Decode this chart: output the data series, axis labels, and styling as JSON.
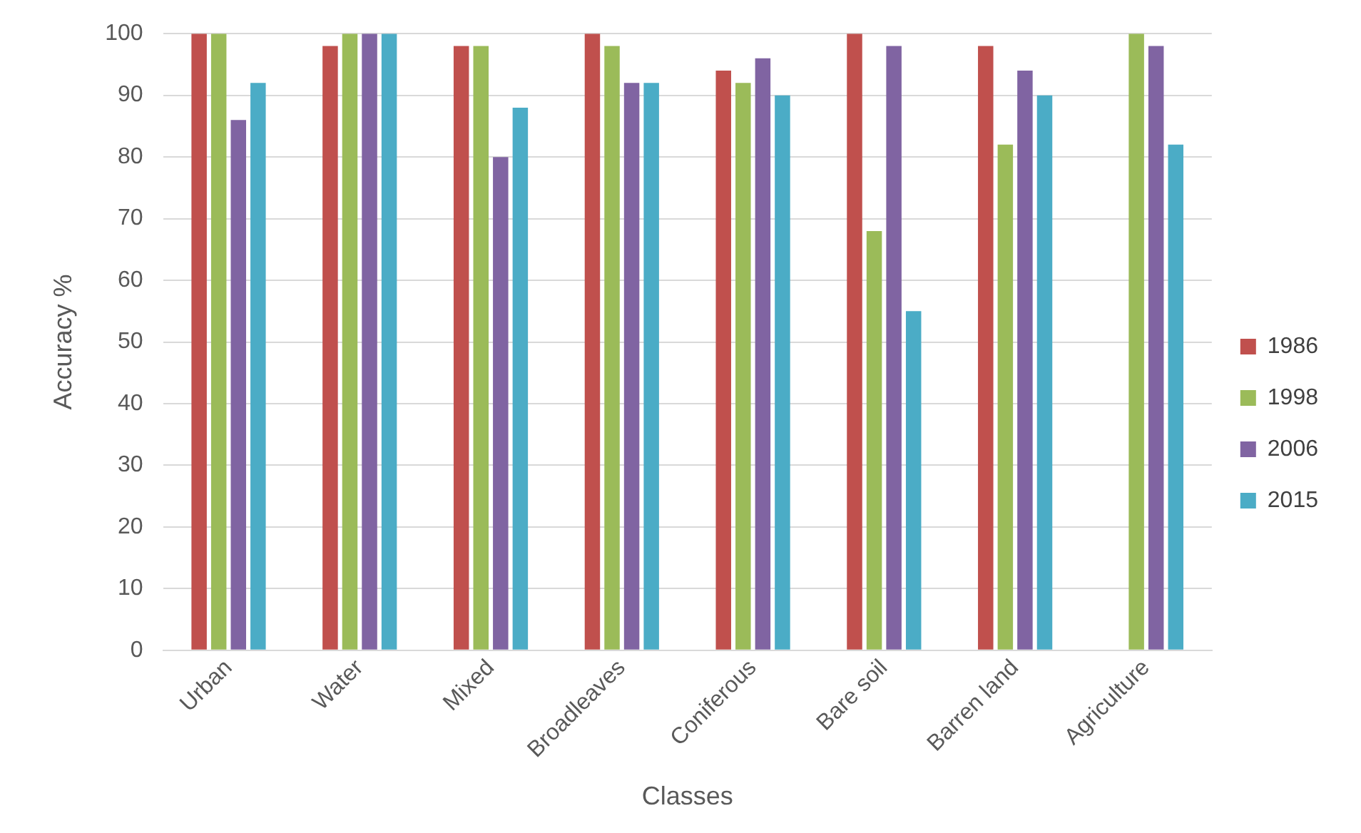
{
  "chart_data": {
    "type": "bar",
    "xlabel": "Classes",
    "ylabel": "Accuracy %",
    "categories": [
      "Urban",
      "Water",
      "Mixed",
      "Broadleaves",
      "Coniferous",
      "Bare soil",
      "Barren land",
      "Agriculture"
    ],
    "series": [
      {
        "name": "1986",
        "color": "#c0504d",
        "values": [
          100,
          98,
          98,
          100,
          94,
          100,
          98,
          null
        ]
      },
      {
        "name": "1998",
        "color": "#9bbb59",
        "values": [
          100,
          100,
          98,
          98,
          92,
          68,
          82,
          100
        ]
      },
      {
        "name": "2006",
        "color": "#8064a2",
        "values": [
          86,
          100,
          80,
          92,
          96,
          98,
          94,
          98
        ]
      },
      {
        "name": "2015",
        "color": "#4bacc6",
        "values": [
          92,
          100,
          88,
          92,
          90,
          55,
          90,
          82
        ]
      }
    ],
    "ylim": [
      0,
      100
    ],
    "yticks": [
      0,
      10,
      20,
      30,
      40,
      50,
      60,
      70,
      80,
      90,
      100
    ],
    "grid": "y",
    "legend": "right"
  }
}
